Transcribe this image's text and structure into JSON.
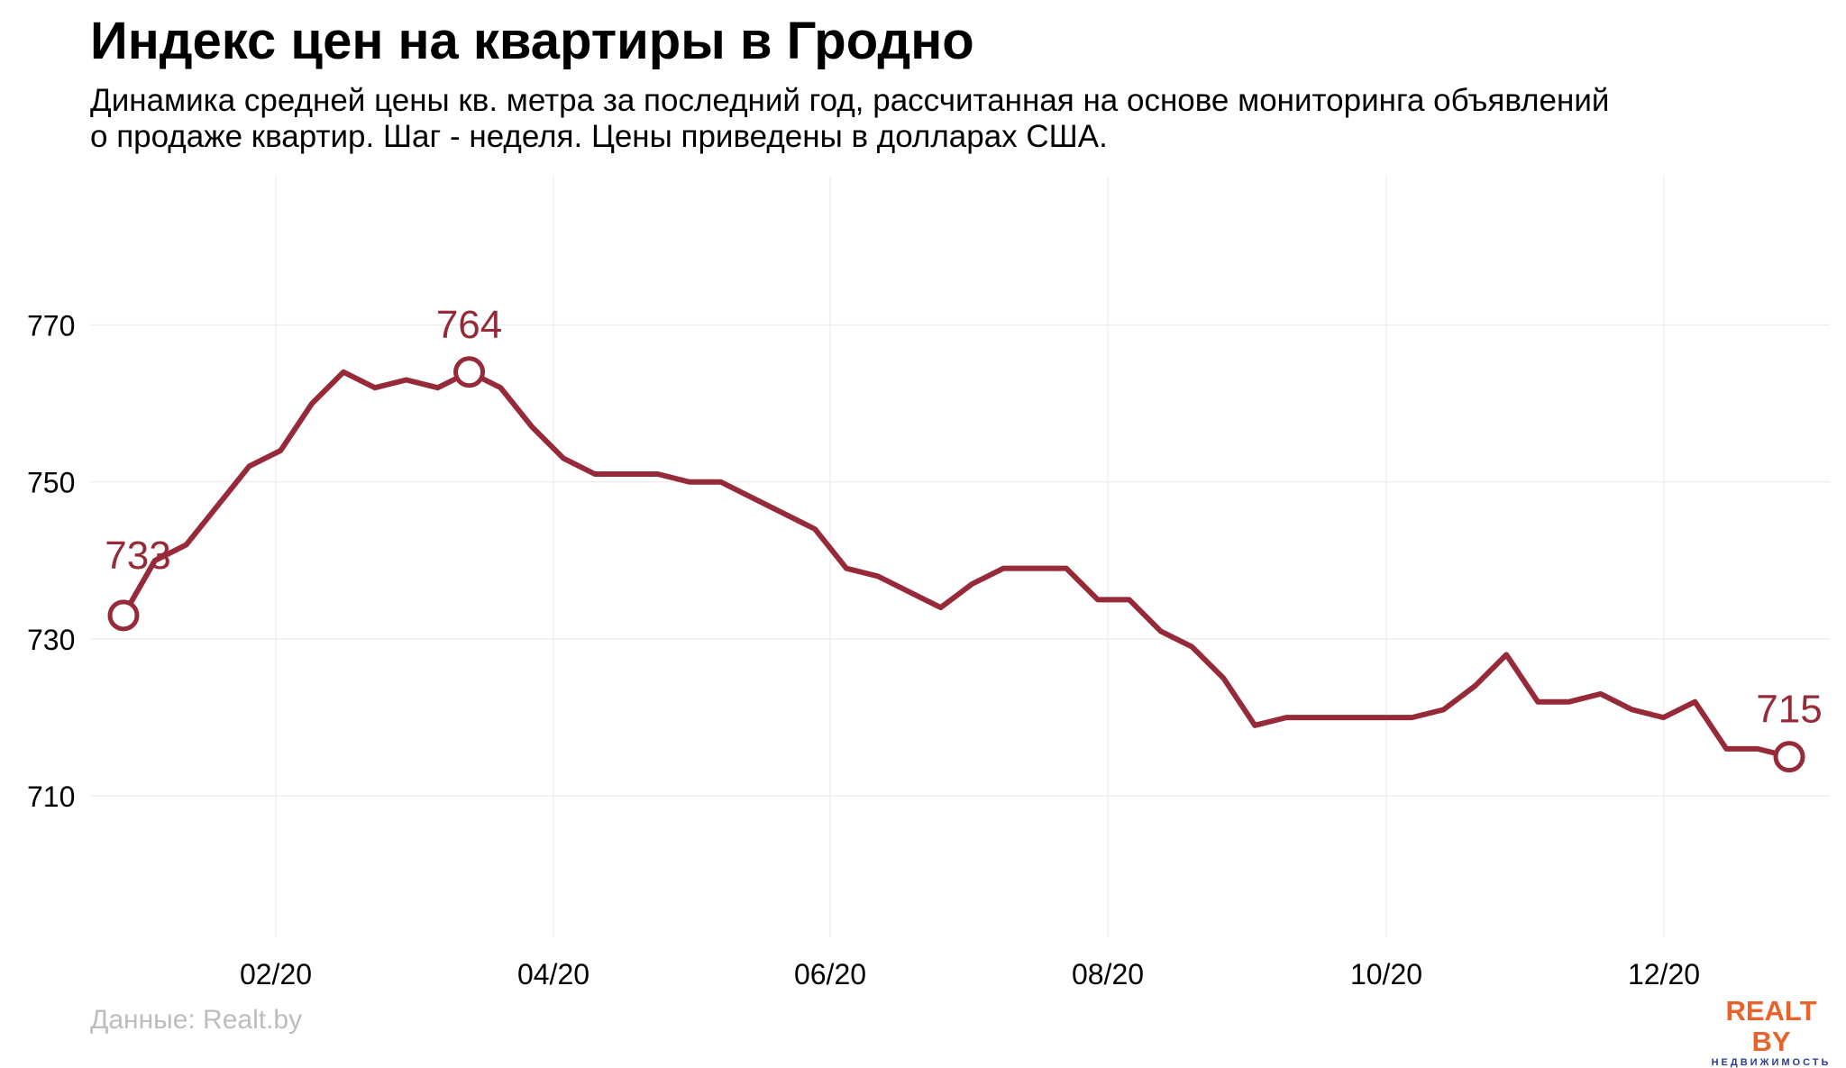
{
  "title": "Индекс цен на квартиры в Гродно",
  "subtitle": "Динамика средней цены кв. метра за последний год, рассчитанная на основе мониторинга объявлений о продаже квартир. Шаг - неделя. Цены приведены в долларах США.",
  "source": "Данные: Realt.by",
  "logo": {
    "main": "REALT BY",
    "sub": "НЕДВИЖИМОСТЬ"
  },
  "colors": {
    "line": "#962a39",
    "grid": "#ececec",
    "text": "#000000",
    "source": "#bdbdbd"
  },
  "chart_data": {
    "type": "line",
    "x_axis": {
      "ticks": [
        "02/20",
        "04/20",
        "06/20",
        "08/20",
        "10/20",
        "12/20"
      ],
      "grid": true
    },
    "y_axis": {
      "ticks": [
        710,
        730,
        750,
        770
      ],
      "grid": true,
      "ylim": [
        692,
        789
      ]
    },
    "series": [
      {
        "values": [
          733,
          740,
          742,
          747,
          752,
          754,
          760,
          764,
          762,
          763,
          762,
          764,
          762,
          757,
          753,
          751,
          751,
          751,
          750,
          750,
          748,
          746,
          744,
          739,
          738,
          736,
          734,
          737,
          739,
          739,
          739,
          735,
          735,
          731,
          729,
          725,
          719,
          720,
          720,
          720,
          720,
          720,
          721,
          724,
          728,
          722,
          722,
          723,
          721,
          720,
          722,
          716,
          716,
          715
        ]
      }
    ],
    "annotations": [
      {
        "label": "733",
        "index": 0,
        "value": 733
      },
      {
        "label": "764",
        "index": 11,
        "value": 764
      },
      {
        "label": "715",
        "index": 53,
        "value": 715
      }
    ]
  }
}
